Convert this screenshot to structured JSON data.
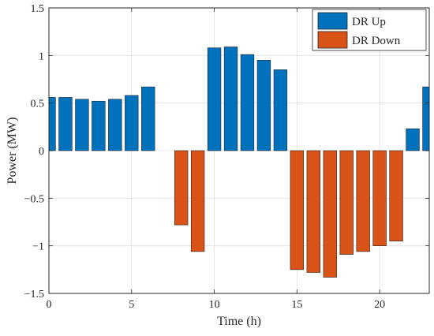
{
  "chart_data": {
    "type": "bar",
    "title": "",
    "xlabel": "Time (h)",
    "ylabel": "Power (MW)",
    "xlim": [
      0,
      23
    ],
    "ylim": [
      -1.5,
      1.5
    ],
    "xticks": [
      0,
      5,
      10,
      15,
      20
    ],
    "xtick_labels": [
      "0",
      "5",
      "10",
      "15",
      "20"
    ],
    "yticks": [
      -1.5,
      -1,
      -0.5,
      0,
      0.5,
      1,
      1.5
    ],
    "ytick_labels": [
      "−1.5",
      "−1",
      "−0.5",
      "0",
      "0.5",
      "1",
      "1.5"
    ],
    "grid": true,
    "legend_position": "top-right",
    "x": [
      0,
      1,
      2,
      3,
      4,
      5,
      6,
      7,
      8,
      9,
      10,
      11,
      12,
      13,
      14,
      15,
      16,
      17,
      18,
      19,
      20,
      21,
      22,
      23
    ],
    "series": [
      {
        "name": "DR Up",
        "color": "#0072BD",
        "values": [
          0.56,
          0.56,
          0.54,
          0.52,
          0.54,
          0.58,
          0.67,
          0,
          0,
          0,
          1.08,
          1.09,
          1.01,
          0.95,
          0.85,
          0,
          0,
          0,
          0,
          0,
          0,
          0,
          0.23,
          0.67
        ]
      },
      {
        "name": "DR Down",
        "color": "#D95319",
        "values": [
          0,
          0,
          0,
          0,
          0,
          0,
          0,
          0,
          -0.78,
          -1.06,
          0,
          0,
          0,
          0,
          0,
          -1.25,
          -1.28,
          -1.33,
          -1.09,
          -1.06,
          -1.0,
          -0.95,
          0,
          0
        ]
      }
    ]
  }
}
